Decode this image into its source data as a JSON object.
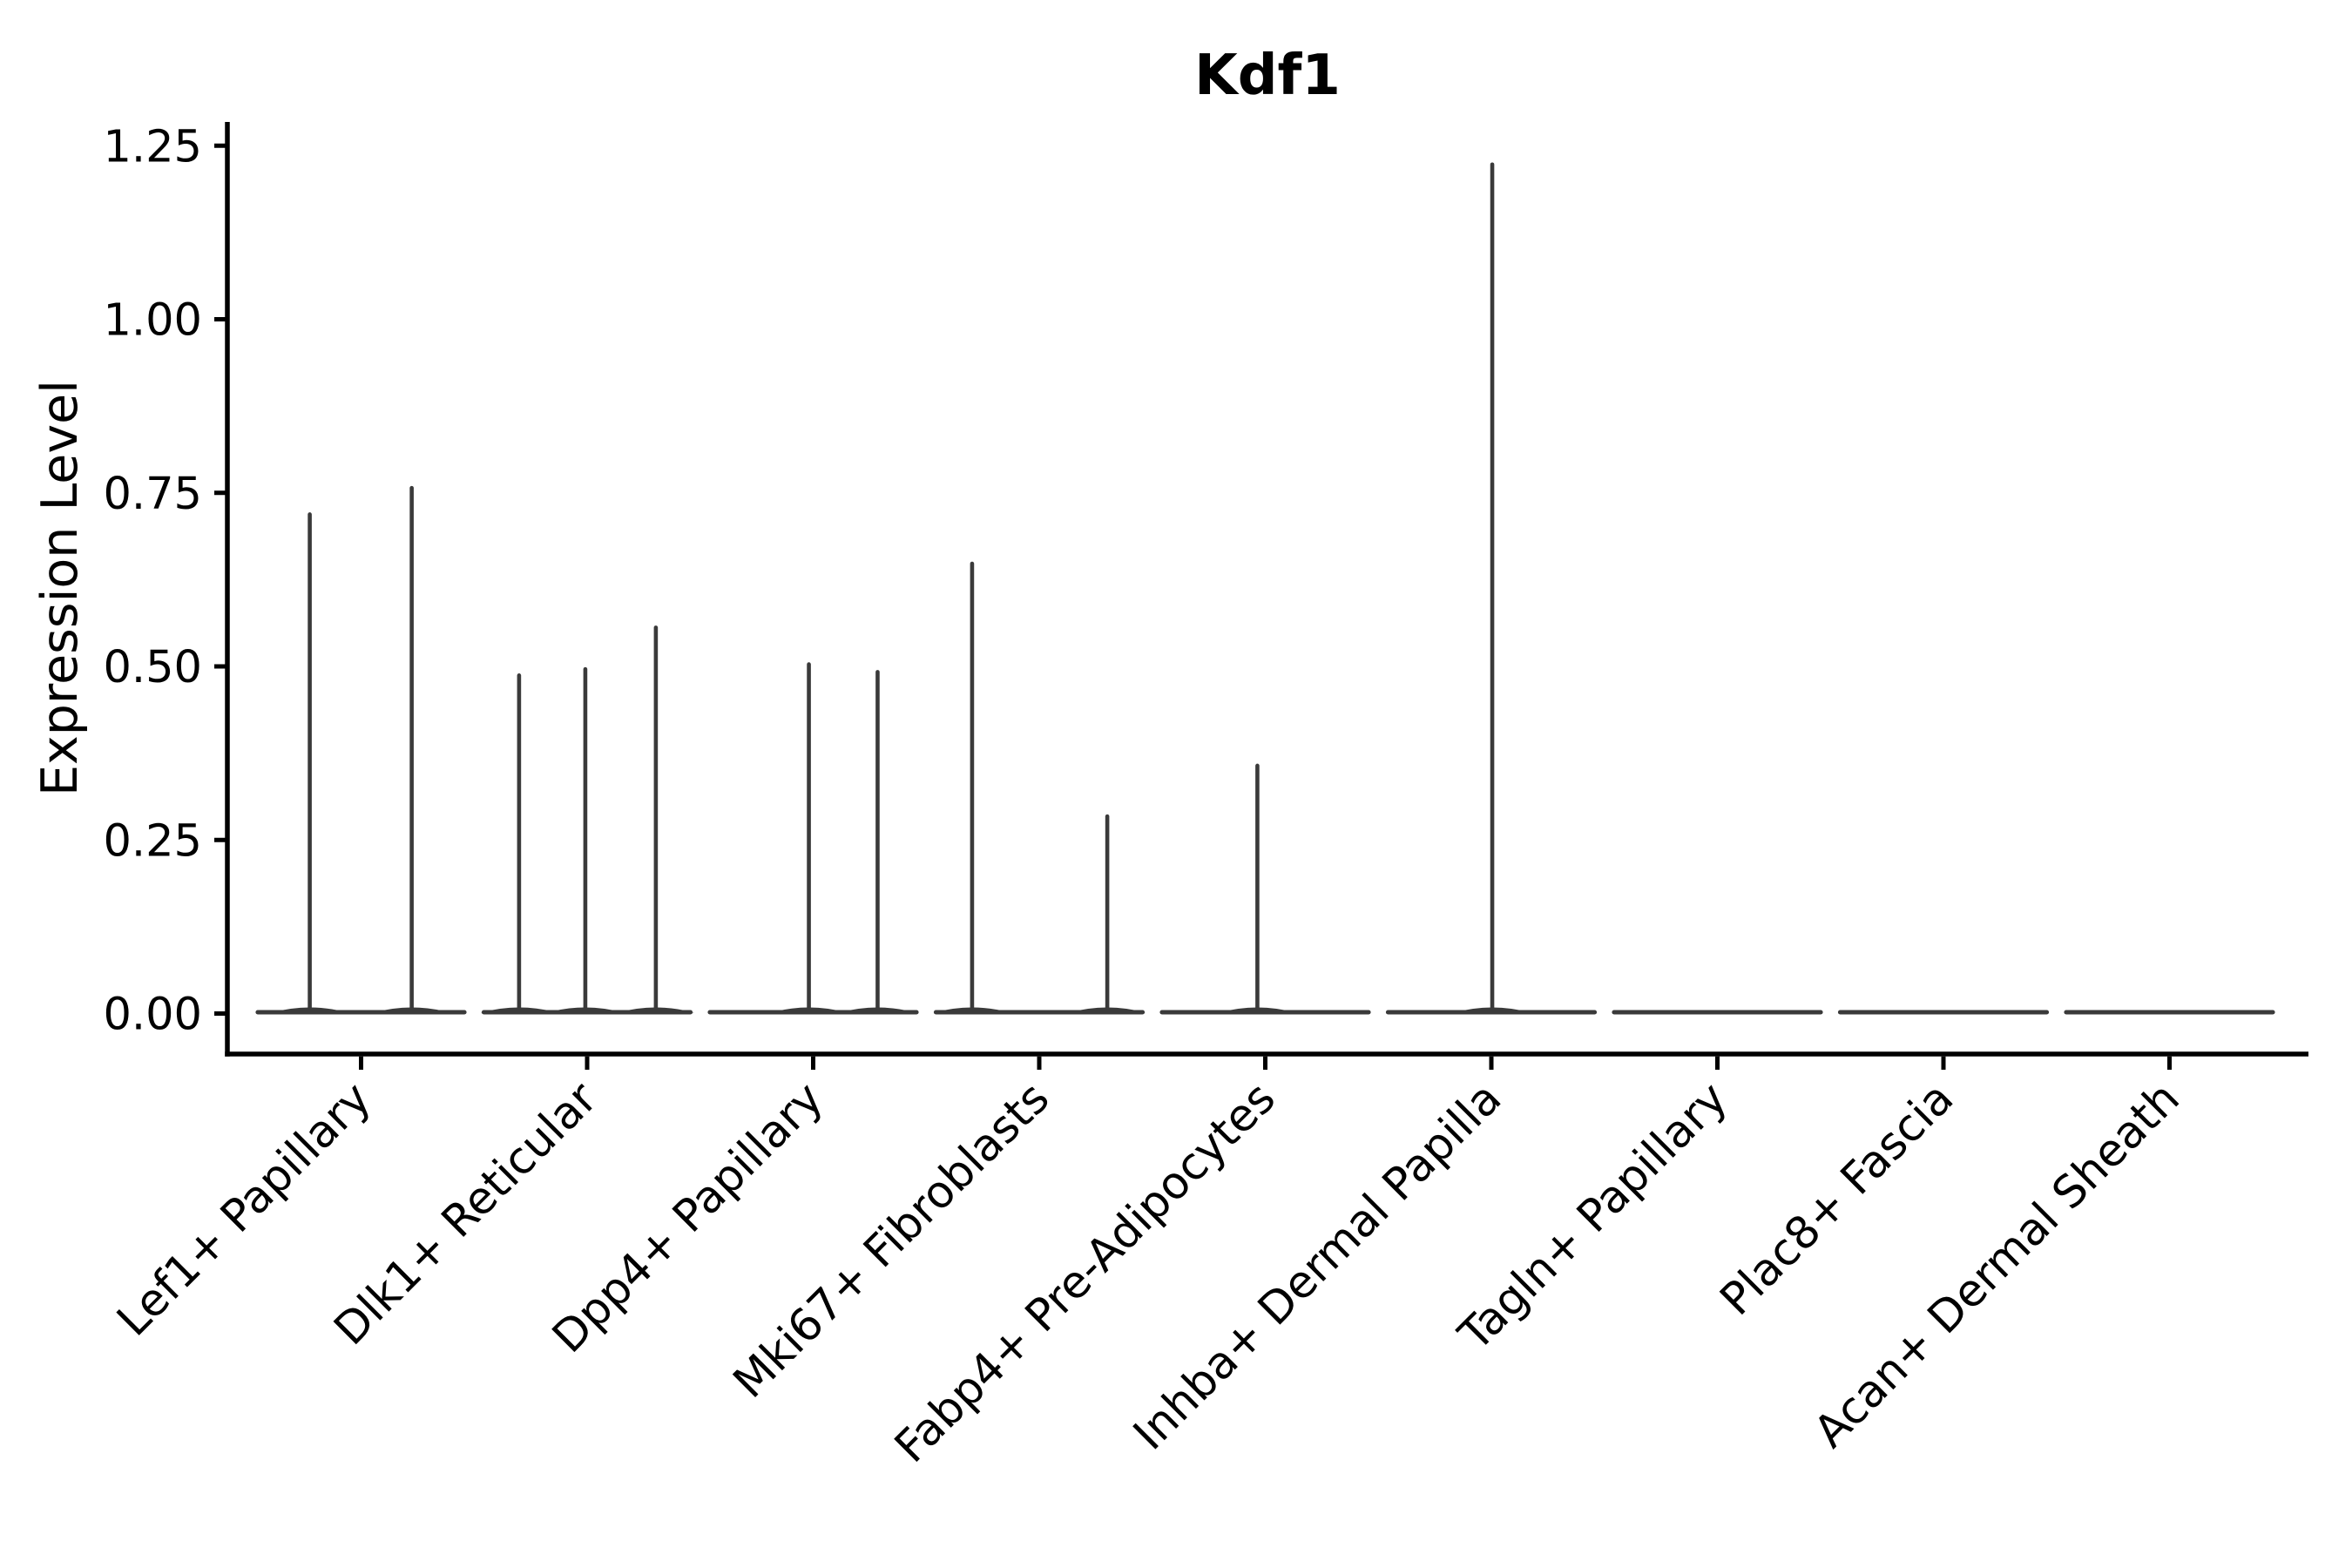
{
  "title": "Kdf1",
  "ylabel": "Expression Level",
  "chart_data": {
    "type": "violin",
    "title": "Kdf1",
    "xlabel": "",
    "ylabel": "Expression Level",
    "grid": false,
    "legend": "none",
    "ylim": [
      -0.06,
      1.31
    ],
    "ytick_values": [
      0.0,
      0.25,
      0.5,
      0.75,
      1.0,
      1.25
    ],
    "ytick_labels": [
      "0.00",
      "0.25",
      "0.50",
      "0.75",
      "1.00",
      "1.25"
    ],
    "categories": [
      "Lef1+ Papillary",
      "Dlk1+ Reticular",
      "Dpp4+ Papillary",
      "Mki67+ Fibroblasts",
      "Fabp4+ Pre-Adipocytes",
      "Inhba+ Dermal Papilla",
      "Tagln+ Papillary",
      "Plac8+ Fascia",
      "Acan+ Dermal Sheath"
    ],
    "description": "Violin plot of Kdf1 expression; each category shows a flat violin body at 0 with thin density spikes up to the max expressed values.",
    "violins": [
      {
        "category": "Lef1+ Papillary",
        "body_halfwidth_frac": 0.457,
        "spikes": [
          {
            "offset_frac": -0.227,
            "value": 0.719
          },
          {
            "offset_frac": 0.224,
            "value": 0.757
          }
        ]
      },
      {
        "category": "Dlk1+ Reticular",
        "body_halfwidth_frac": 0.457,
        "spikes": [
          {
            "offset_frac": -0.301,
            "value": 0.487
          },
          {
            "offset_frac": -0.008,
            "value": 0.496
          },
          {
            "offset_frac": 0.304,
            "value": 0.556
          }
        ]
      },
      {
        "category": "Dpp4+ Papillary",
        "body_halfwidth_frac": 0.457,
        "spikes": [
          {
            "offset_frac": -0.019,
            "value": 0.503
          },
          {
            "offset_frac": 0.285,
            "value": 0.492
          }
        ]
      },
      {
        "category": "Mki67+ Fibroblasts",
        "body_halfwidth_frac": 0.457,
        "spikes": [
          {
            "offset_frac": -0.297,
            "value": 0.648
          },
          {
            "offset_frac": 0.301,
            "value": 0.284
          }
        ]
      },
      {
        "category": "Fabp4+ Pre-Adipocytes",
        "body_halfwidth_frac": 0.457,
        "spikes": [
          {
            "offset_frac": -0.035,
            "value": 0.357
          }
        ]
      },
      {
        "category": "Inhba+ Dermal Papilla",
        "body_halfwidth_frac": 0.457,
        "spikes": [
          {
            "offset_frac": 0.004,
            "value": 1.223
          }
        ]
      },
      {
        "category": "Tagln+ Papillary",
        "body_halfwidth_frac": 0.457,
        "spikes": []
      },
      {
        "category": "Plac8+ Fascia",
        "body_halfwidth_frac": 0.457,
        "spikes": []
      },
      {
        "category": "Acan+ Dermal Sheath",
        "body_halfwidth_frac": 0.457,
        "spikes": []
      }
    ]
  },
  "style": {
    "background": "#ffffff",
    "axis_color": "#000000",
    "text_color": "#000000",
    "violin_color": "#3a3a3a"
  }
}
